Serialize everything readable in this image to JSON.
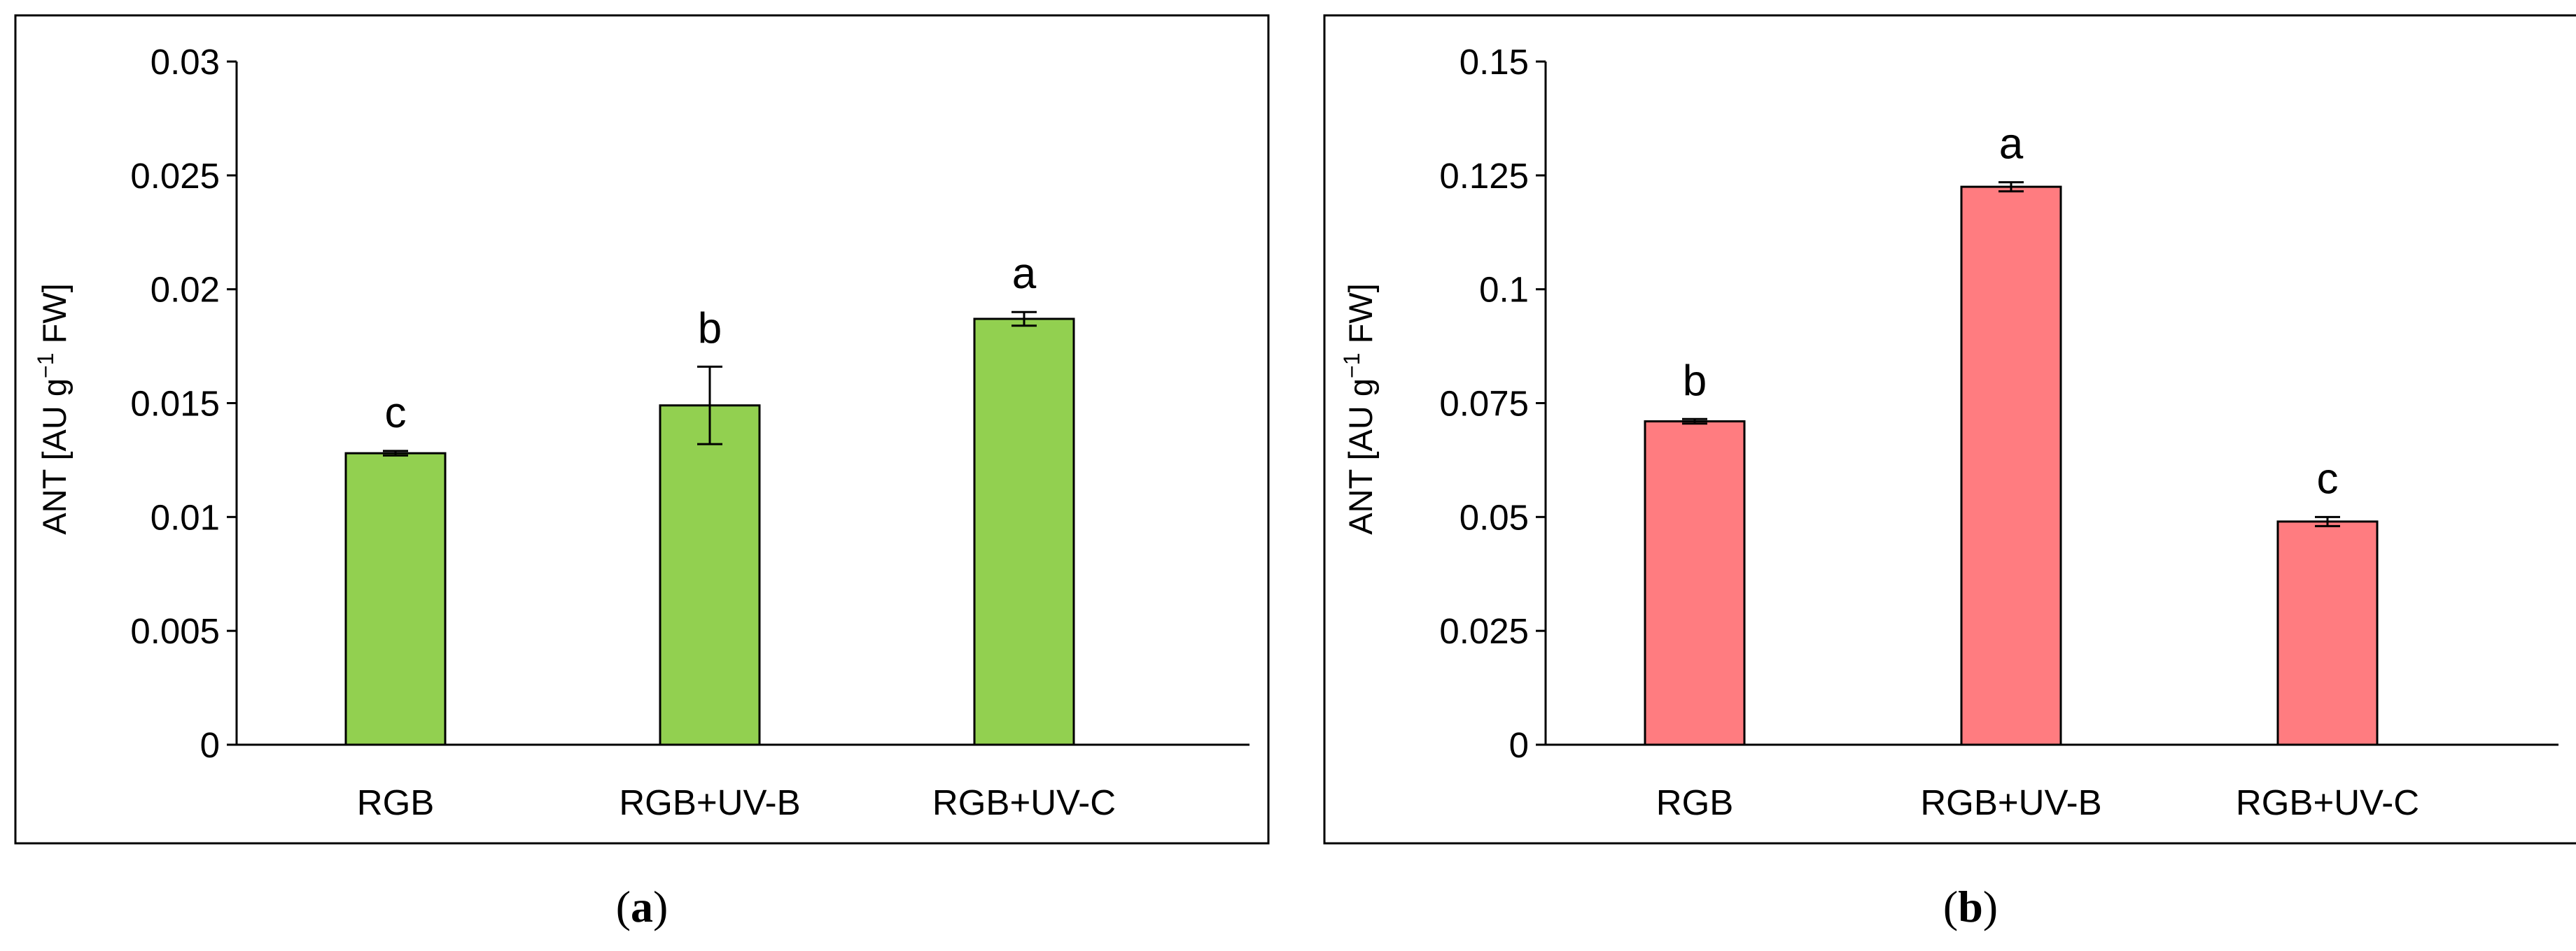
{
  "chart_data": [
    {
      "type": "bar",
      "panel": "a",
      "categories": [
        "RGB",
        "RGB+UV-B",
        "RGB+UV-C"
      ],
      "values": [
        0.0128,
        0.0149,
        0.0187
      ],
      "error": [
        0.0001,
        0.0017,
        0.0003
      ],
      "significance": [
        "c",
        "b",
        "a"
      ],
      "ylabel": {
        "pre": "ANT [AU g",
        "sup": "−1",
        "post": " FW]"
      },
      "ylim": [
        0,
        0.03
      ],
      "yticks": [
        "0",
        "0.005",
        "0.01",
        "0.015",
        "0.02",
        "0.025",
        "0.03"
      ],
      "bar_color": "#92d050",
      "grid": false
    },
    {
      "type": "bar",
      "panel": "b",
      "categories": [
        "RGB",
        "RGB+UV-B",
        "RGB+UV-C"
      ],
      "values": [
        0.071,
        0.1225,
        0.049
      ],
      "error": [
        0.0005,
        0.001,
        0.001
      ],
      "significance": [
        "b",
        "a",
        "c"
      ],
      "ylabel": {
        "pre": "ANT [AU g",
        "sup": "−1",
        "post": " FW]"
      },
      "ylim": [
        0,
        0.15
      ],
      "yticks": [
        "0",
        "0.025",
        "0.05",
        "0.075",
        "0.1",
        "0.125",
        "0.15"
      ],
      "bar_color": "#ff7c80",
      "grid": false
    }
  ],
  "captions": [
    {
      "open": "(",
      "letter": "a",
      "close": ")"
    },
    {
      "open": "(",
      "letter": "b",
      "close": ")"
    }
  ]
}
